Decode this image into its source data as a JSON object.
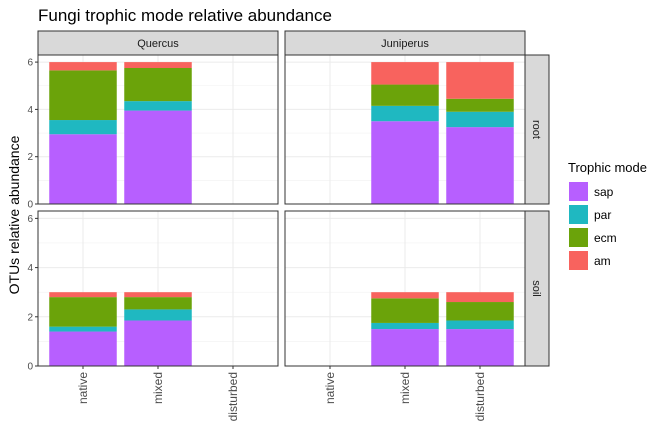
{
  "chart_data": {
    "type": "bar",
    "stacked": true,
    "title": "Fungi trophic mode relative abundance",
    "ylabel": "OTUs relative abundance",
    "xlabel": "",
    "ylim": [
      0,
      6.3
    ],
    "yticks": [
      0,
      2,
      4,
      6
    ],
    "categories": [
      "native",
      "mixed",
      "disturbed"
    ],
    "facet_columns": [
      "Quercus",
      "Juniperus"
    ],
    "facet_rows": [
      "root",
      "soil"
    ],
    "legend": {
      "title": "Trophic mode",
      "position": "right",
      "entries": [
        {
          "name": "sap",
          "color": "#B75FFF"
        },
        {
          "name": "par",
          "color": "#1FB8C1"
        },
        {
          "name": "ecm",
          "color": "#6BA30A"
        },
        {
          "name": "am",
          "color": "#F8635E"
        }
      ]
    },
    "stack_order": [
      "sap",
      "par",
      "ecm",
      "am"
    ],
    "grid": true,
    "panels": [
      {
        "row": "root",
        "column": "Quercus",
        "bars": [
          {
            "category": "native",
            "sap": 2.95,
            "par": 0.6,
            "ecm": 2.1,
            "am": 0.35
          },
          {
            "category": "mixed",
            "sap": 3.95,
            "par": 0.4,
            "ecm": 1.4,
            "am": 0.25
          }
        ]
      },
      {
        "row": "root",
        "column": "Juniperus",
        "bars": [
          {
            "category": "mixed",
            "sap": 3.5,
            "par": 0.65,
            "ecm": 0.9,
            "am": 0.95
          },
          {
            "category": "disturbed",
            "sap": 3.25,
            "par": 0.65,
            "ecm": 0.55,
            "am": 1.55
          }
        ]
      },
      {
        "row": "soil",
        "column": "Quercus",
        "bars": [
          {
            "category": "native",
            "sap": 1.4,
            "par": 0.2,
            "ecm": 1.2,
            "am": 0.2
          },
          {
            "category": "mixed",
            "sap": 1.85,
            "par": 0.45,
            "ecm": 0.5,
            "am": 0.2
          }
        ]
      },
      {
        "row": "soil",
        "column": "Juniperus",
        "bars": [
          {
            "category": "mixed",
            "sap": 1.5,
            "par": 0.25,
            "ecm": 1.0,
            "am": 0.25
          },
          {
            "category": "disturbed",
            "sap": 1.5,
            "par": 0.35,
            "ecm": 0.75,
            "am": 0.4
          }
        ]
      }
    ]
  }
}
